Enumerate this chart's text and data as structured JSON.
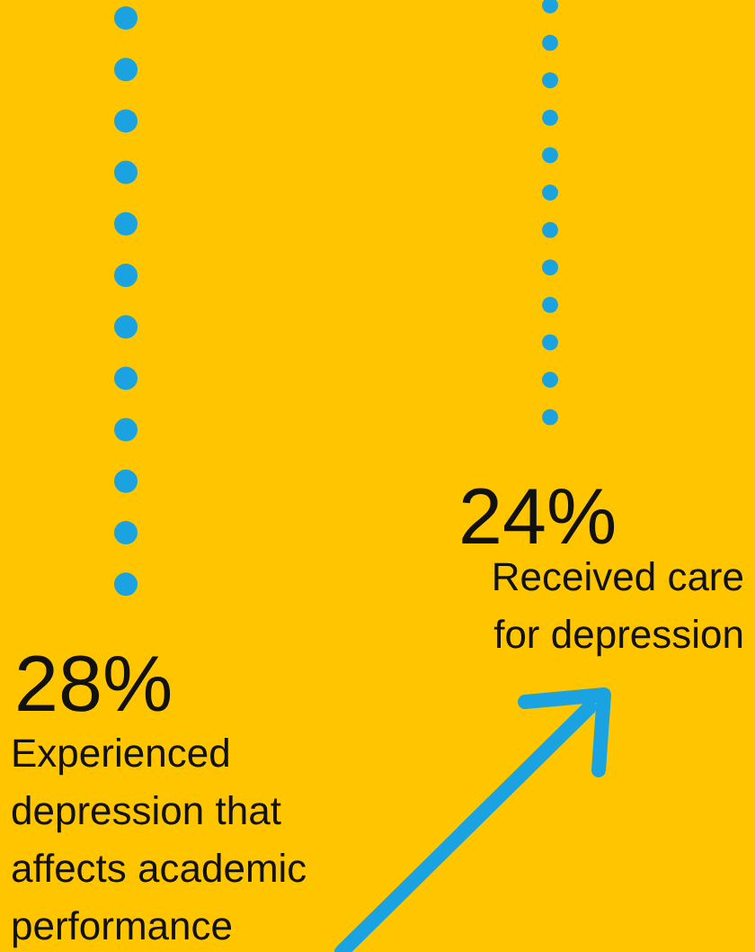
{
  "chart_data": {
    "type": "other",
    "categories": [
      "Experienced depression that affects academic performance",
      "Received care for depression"
    ],
    "values": [
      28,
      24
    ],
    "value_labels": [
      "28%",
      "24%"
    ],
    "color": "#1aa3e0"
  }
}
